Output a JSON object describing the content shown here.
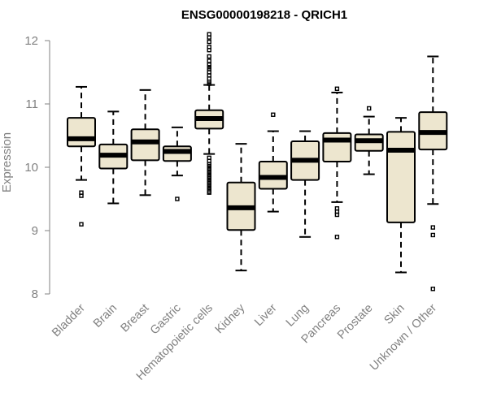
{
  "chart_data": {
    "type": "boxplot",
    "title": "ENSG00000198218 - QRICH1",
    "xlabel": "",
    "ylabel": "Expression",
    "ylim": [
      8,
      12
    ],
    "yticks": [
      "8",
      "9",
      "10",
      "11",
      "12"
    ],
    "categories": [
      "Bladder",
      "Brain",
      "Breast",
      "Gastric",
      "Hematopoietic cells",
      "Kidney",
      "Liver",
      "Lung",
      "Pancreas",
      "Prostate",
      "Skin",
      "Unknown / Other"
    ],
    "boxes": [
      {
        "min": 9.8,
        "q1": 10.33,
        "median": 10.45,
        "q3": 10.78,
        "max": 11.27,
        "outliers": [
          9.6,
          9.55,
          9.1
        ]
      },
      {
        "min": 9.43,
        "q1": 9.98,
        "median": 10.19,
        "q3": 10.36,
        "max": 10.88,
        "outliers": []
      },
      {
        "min": 9.56,
        "q1": 10.11,
        "median": 10.4,
        "q3": 10.6,
        "max": 11.22,
        "outliers": []
      },
      {
        "min": 9.87,
        "q1": 10.1,
        "median": 10.25,
        "q3": 10.33,
        "max": 10.63,
        "outliers": [
          9.5
        ]
      },
      {
        "min": 10.21,
        "q1": 10.61,
        "median": 10.77,
        "q3": 10.9,
        "max": 11.3,
        "outliers": [
          12.1,
          12.05,
          11.98,
          11.9,
          11.85,
          11.75,
          11.68,
          11.62,
          11.58,
          11.55,
          11.5,
          11.45,
          11.4,
          11.35,
          11.32,
          10.15,
          10.1,
          10.05,
          10.02,
          9.98,
          9.95,
          9.92,
          9.88,
          9.85,
          9.82,
          9.78,
          9.75,
          9.72,
          9.68,
          9.65,
          9.62,
          9.6
        ]
      },
      {
        "min": 8.37,
        "q1": 9.01,
        "median": 9.36,
        "q3": 9.76,
        "max": 10.37,
        "outliers": []
      },
      {
        "min": 9.3,
        "q1": 9.66,
        "median": 9.84,
        "q3": 10.09,
        "max": 10.57,
        "outliers": [
          10.83
        ]
      },
      {
        "min": 8.9,
        "q1": 9.8,
        "median": 10.11,
        "q3": 10.41,
        "max": 10.57,
        "outliers": []
      },
      {
        "min": 9.45,
        "q1": 10.09,
        "median": 10.43,
        "q3": 10.54,
        "max": 11.18,
        "outliers": [
          11.24,
          9.35,
          9.3,
          9.25,
          8.9
        ]
      },
      {
        "min": 9.89,
        "q1": 10.26,
        "median": 10.42,
        "q3": 10.52,
        "max": 10.8,
        "outliers": [
          10.93
        ]
      },
      {
        "min": 8.34,
        "q1": 9.13,
        "median": 10.27,
        "q3": 10.56,
        "max": 10.78,
        "outliers": []
      },
      {
        "min": 9.42,
        "q1": 10.28,
        "median": 10.55,
        "q3": 10.87,
        "max": 11.75,
        "outliers": [
          9.05,
          8.93,
          8.08
        ]
      }
    ]
  }
}
